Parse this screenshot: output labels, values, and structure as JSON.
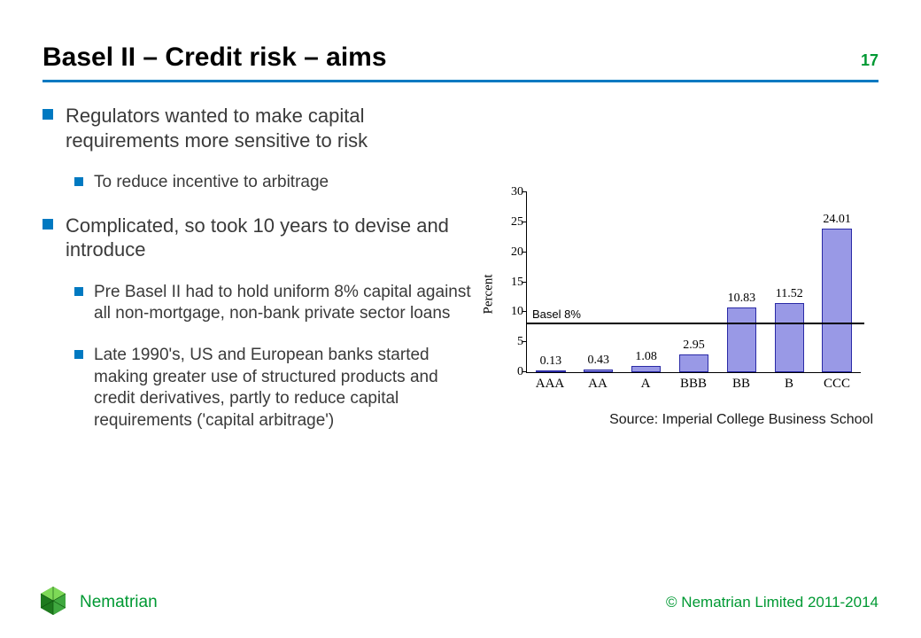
{
  "header": {
    "title": "Basel II – Credit risk – aims",
    "page_number": "17",
    "divider_color": "#0079c1"
  },
  "bullets": {
    "marker_color": "#0079c1",
    "items": [
      {
        "level": 1,
        "text": "Regulators wanted to make capital requirements more sensitive to risk"
      },
      {
        "level": 2,
        "text": "To reduce incentive to arbitrage"
      },
      {
        "level": 1,
        "text": "Complicated, so took 10 years to devise and introduce"
      },
      {
        "level": 2,
        "text": "Pre Basel II had to hold uniform 8% capital against all non-mortgage, non-bank private sector loans"
      },
      {
        "level": 2,
        "text": "Late 1990's, US and European banks started making greater use of structured products and credit derivatives, partly to reduce capital requirements ('capital arbitrage')"
      }
    ]
  },
  "chart": {
    "type": "bar",
    "ylabel": "Percent",
    "ylim": [
      0,
      30
    ],
    "ytick_step": 5,
    "yticks": [
      0,
      5,
      10,
      15,
      20,
      25,
      30
    ],
    "categories": [
      "AAA",
      "AA",
      "A",
      "BBB",
      "BB",
      "B",
      "CCC"
    ],
    "values": [
      0.13,
      0.43,
      1.08,
      2.95,
      10.83,
      11.52,
      24.01
    ],
    "value_labels": [
      "0.13",
      "0.43",
      "1.08",
      "2.95",
      "10.83",
      "11.52",
      "24.01"
    ],
    "bar_fill": "#9999e6",
    "bar_stroke": "#2a2aa6",
    "basel_line_value": 8,
    "basel_label": "Basel 8%",
    "background_color": "#ffffff",
    "axis_color": "#000000",
    "label_fontsize": 14,
    "source": "Source: Imperial College Business School"
  },
  "footer": {
    "brand_name": "Nematrian",
    "copyright": "© Nematrian Limited 2011-2014",
    "brand_color": "#009933",
    "logo_colors": {
      "light": "#7ed957",
      "mid": "#3fa83f",
      "dark": "#1e7a1e"
    }
  }
}
